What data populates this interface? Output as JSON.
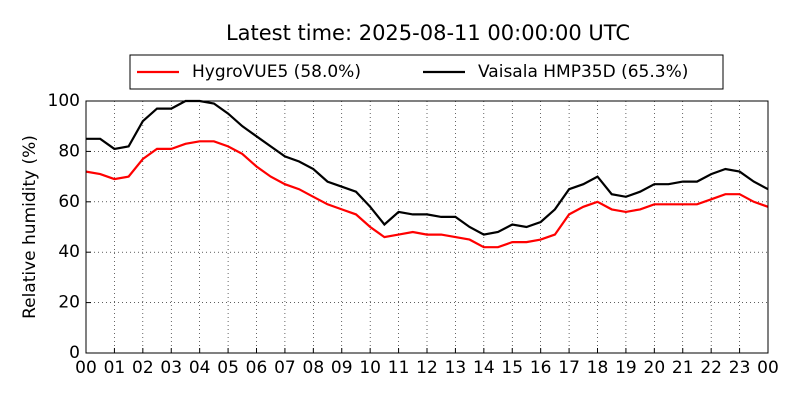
{
  "chart_data": {
    "type": "line",
    "title": "Latest time: 2025-08-11 00:00:00 UTC",
    "ylabel": "Relative humidity (%)",
    "x": [
      0,
      0.5,
      1,
      1.5,
      2,
      2.5,
      3,
      3.5,
      4,
      4.5,
      5,
      5.5,
      6,
      6.5,
      7,
      7.5,
      8,
      8.5,
      9,
      9.5,
      10,
      10.5,
      11,
      11.5,
      12,
      12.5,
      13,
      13.5,
      14,
      14.5,
      15,
      15.5,
      16,
      16.5,
      17,
      17.5,
      18,
      18.5,
      19,
      19.5,
      20,
      20.5,
      21,
      21.5,
      22,
      22.5,
      23,
      23.5,
      24
    ],
    "series": [
      {
        "name": "HygroVUE5 (58.0%)",
        "color": "#ff0000",
        "values": [
          72,
          71,
          69,
          70,
          77,
          81,
          81,
          83,
          84,
          84,
          82,
          79,
          74,
          70,
          67,
          65,
          62,
          59,
          57,
          55,
          50,
          46,
          47,
          48,
          47,
          47,
          46,
          45,
          42,
          42,
          44,
          44,
          45,
          47,
          55,
          58,
          60,
          57,
          56,
          57,
          59,
          59,
          59,
          59,
          61,
          63,
          63,
          60,
          58
        ]
      },
      {
        "name": "Vaisala HMP35D (65.3%)",
        "color": "#000000",
        "values": [
          85,
          85,
          81,
          82,
          92,
          97,
          97,
          100,
          100,
          99,
          95,
          90,
          86,
          82,
          78,
          76,
          73,
          68,
          66,
          64,
          58,
          51,
          56,
          55,
          55,
          54,
          54,
          50,
          47,
          48,
          51,
          50,
          52,
          57,
          65,
          67,
          70,
          63,
          62,
          64,
          67,
          67,
          68,
          68,
          71,
          73,
          72,
          68,
          65
        ]
      }
    ],
    "xlim": [
      0,
      24
    ],
    "xticks": [
      {
        "value": 0,
        "label": "00"
      },
      {
        "value": 1,
        "label": "01"
      },
      {
        "value": 2,
        "label": "02"
      },
      {
        "value": 3,
        "label": "03"
      },
      {
        "value": 4,
        "label": "04"
      },
      {
        "value": 5,
        "label": "05"
      },
      {
        "value": 6,
        "label": "06"
      },
      {
        "value": 7,
        "label": "07"
      },
      {
        "value": 8,
        "label": "08"
      },
      {
        "value": 9,
        "label": "09"
      },
      {
        "value": 10,
        "label": "10"
      },
      {
        "value": 11,
        "label": "11"
      },
      {
        "value": 12,
        "label": "12"
      },
      {
        "value": 13,
        "label": "13"
      },
      {
        "value": 14,
        "label": "14"
      },
      {
        "value": 15,
        "label": "15"
      },
      {
        "value": 16,
        "label": "16"
      },
      {
        "value": 17,
        "label": "17"
      },
      {
        "value": 18,
        "label": "18"
      },
      {
        "value": 19,
        "label": "19"
      },
      {
        "value": 20,
        "label": "20"
      },
      {
        "value": 21,
        "label": "21"
      },
      {
        "value": 22,
        "label": "22"
      },
      {
        "value": 23,
        "label": "23"
      },
      {
        "value": 24,
        "label": "00"
      }
    ],
    "ylim": [
      0,
      100
    ],
    "yticks": [
      0,
      20,
      40,
      60,
      80,
      100
    ],
    "grid": true
  }
}
